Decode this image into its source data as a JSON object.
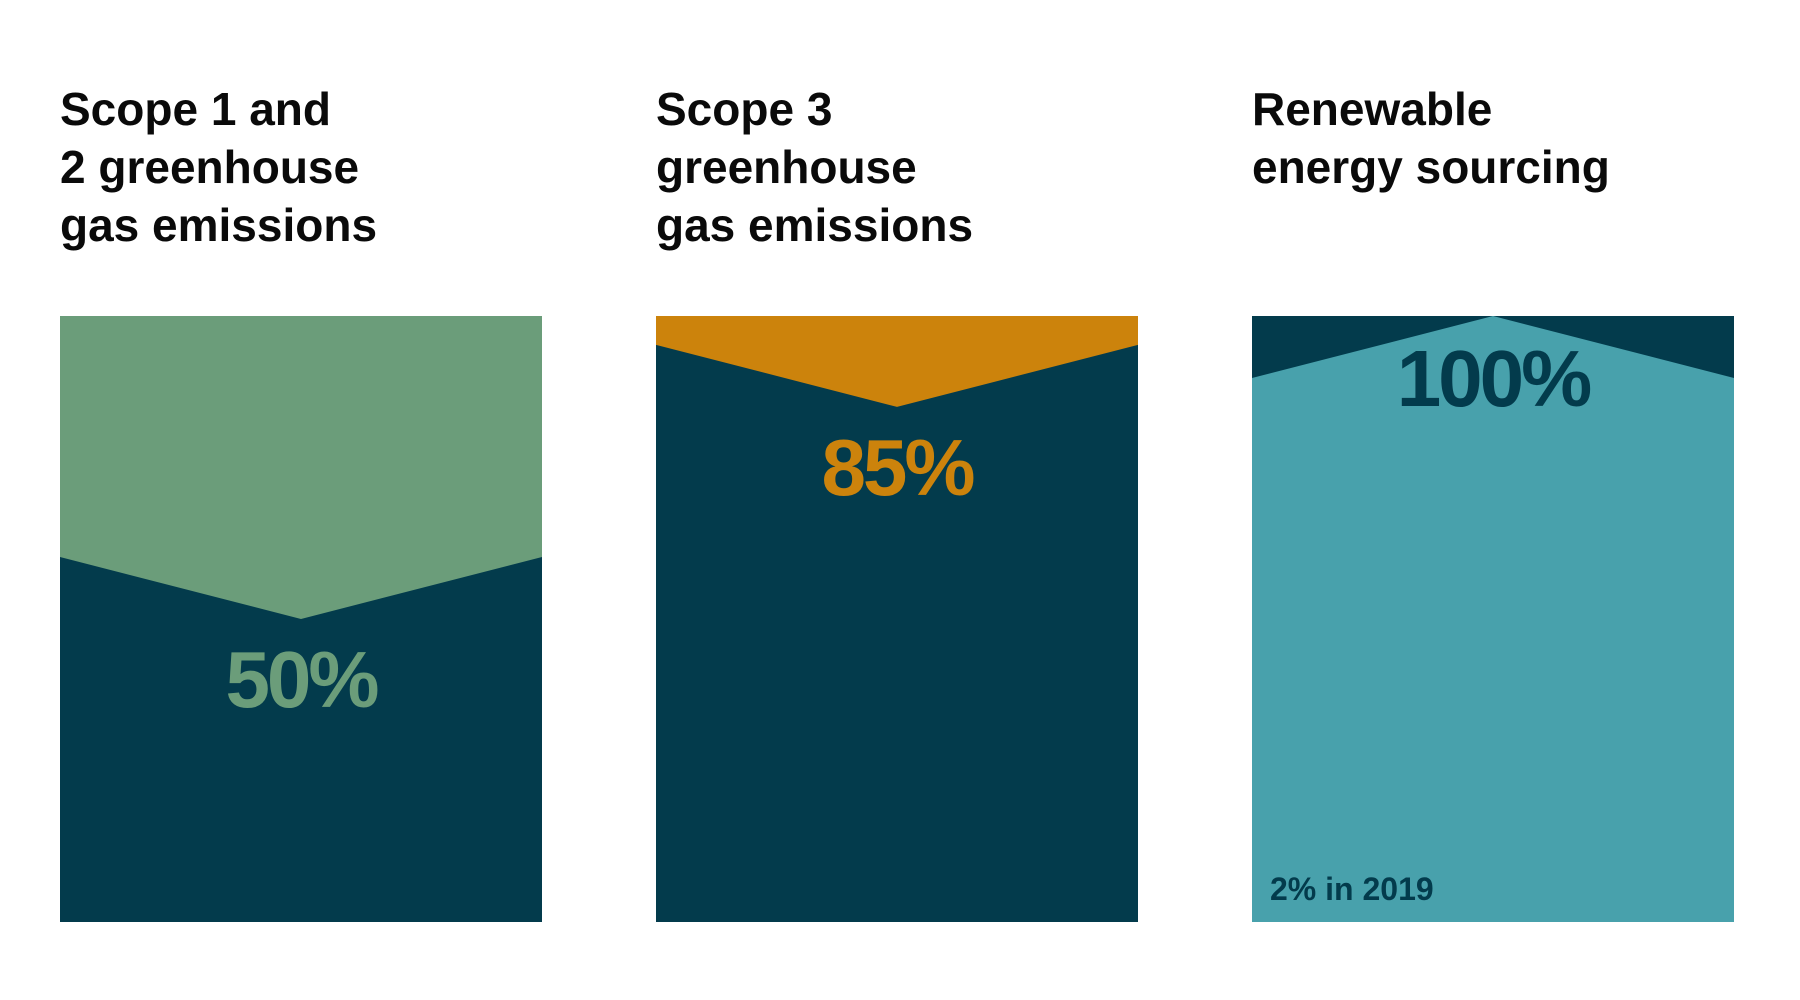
{
  "chart_data": [
    {
      "type": "bar",
      "title": "Scope 1 and\n2 greenhouse\ngas emissions",
      "value_label": "50%",
      "value": 50,
      "ylim": [
        0,
        100
      ],
      "colors": {
        "top": "#6b9d7a",
        "bottom": "#033b4c",
        "label": "#6b9d7a"
      }
    },
    {
      "type": "bar",
      "title": "Scope 3\ngreenhouse\ngas emissions",
      "value_label": "85%",
      "value": 85,
      "ylim": [
        0,
        100
      ],
      "colors": {
        "top": "#cc830c",
        "bottom": "#033b4c",
        "label": "#cc830c"
      }
    },
    {
      "type": "bar",
      "title": "Renewable\nenergy sourcing",
      "value_label": "100%",
      "value": 100,
      "ylim": [
        0,
        100
      ],
      "note": "2% in 2019",
      "colors": {
        "top": "#033b4c",
        "bottom": "#48a1ac",
        "label": "#033b4c"
      }
    }
  ]
}
